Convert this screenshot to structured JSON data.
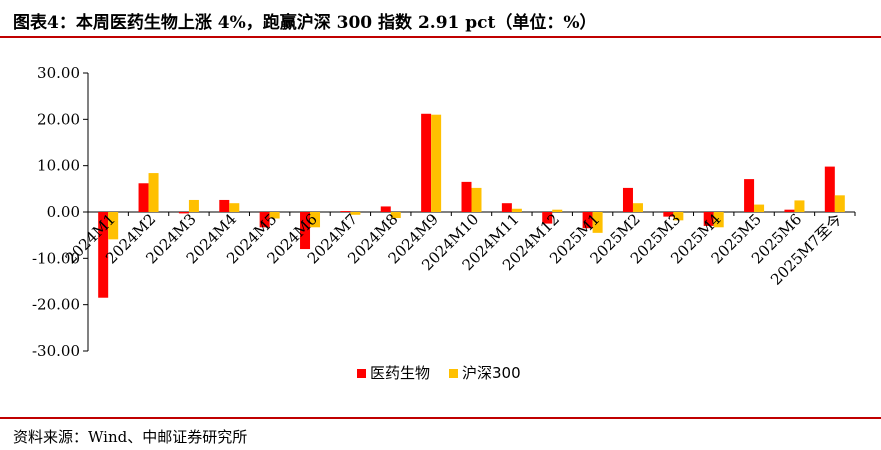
{
  "header": {
    "title": "图表4：本周医药生物上涨 4%，跑赢沪深 300 指数 2.91 pct（单位：%）"
  },
  "footer": {
    "source": "资料来源：Wind、中邮证券研究所"
  },
  "colors": {
    "accent_rule": "#c00000",
    "series_pharma": "#ff0000",
    "series_csi300": "#ffc000"
  },
  "chart_data": {
    "type": "bar",
    "categories": [
      "2024M1",
      "2024M2",
      "2024M3",
      "2024M4",
      "2024M5",
      "2024M6",
      "2024M7",
      "2024M8",
      "2024M9",
      "2024M10",
      "2024M11",
      "2024M12",
      "2025M1",
      "2025M2",
      "2025M3",
      "2025M4",
      "2025M5",
      "2025M6",
      "2025M7至今"
    ],
    "series": [
      {
        "name": "医药生物",
        "color": "#ff0000",
        "values": [
          -18.5,
          6.2,
          -0.3,
          2.6,
          -3.3,
          -8.0,
          0.2,
          1.2,
          21.2,
          6.5,
          1.9,
          -2.5,
          -3.5,
          5.2,
          -1.0,
          -3.0,
          7.1,
          0.5,
          9.8
        ]
      },
      {
        "name": "沪深300",
        "color": "#ffc000",
        "values": [
          -5.9,
          8.4,
          2.6,
          1.9,
          -1.4,
          -3.3,
          -0.6,
          -1.3,
          21.0,
          5.2,
          0.7,
          0.5,
          -4.5,
          1.9,
          -1.8,
          -3.3,
          1.6,
          2.5,
          3.6
        ]
      }
    ],
    "ylim": [
      -30,
      30
    ],
    "yticks": [
      "30.00",
      "20.00",
      "10.00",
      "0.00",
      "-10.00",
      "-20.00",
      "-30.00"
    ],
    "ytick_values": [
      30,
      20,
      10,
      0,
      -10,
      -20,
      -30
    ],
    "legend": {
      "position": "bottom"
    },
    "grid": false
  }
}
